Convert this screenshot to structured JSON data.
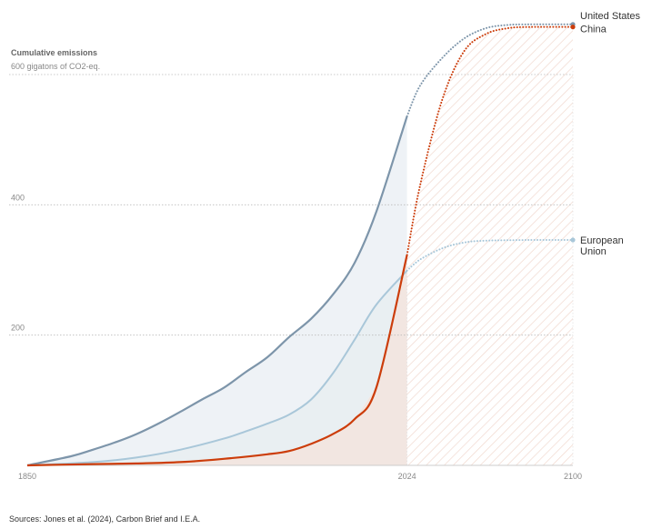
{
  "source": "Sources: Jones et al. (2024), Carbon Brief and I.E.A.",
  "chart_data": {
    "type": "line",
    "title": "Cumulative emissions",
    "subtitle": "600 gigatons of CO2-eq.",
    "x_ticks": [
      "1850",
      "2024",
      "2100"
    ],
    "y_ticks": [
      400,
      200
    ],
    "xlim": [
      1850,
      2100
    ],
    "ylim": [
      0,
      600
    ],
    "projection_start": 2024,
    "grid": "horizontal dotted",
    "colors": {
      "us": "#7d95aa",
      "china": "#cc3d0b",
      "eu": "#a9c7d9",
      "us_fill": "#eef2f6",
      "china_fill": "#f2e6e1",
      "eu_fill": "#e9eff2"
    },
    "series": [
      {
        "key": "us",
        "name": "United States",
        "label_lines": [
          "United States"
        ],
        "historical": [
          [
            1850,
            0
          ],
          [
            1870,
            14
          ],
          [
            1880,
            24
          ],
          [
            1890,
            35
          ],
          [
            1900,
            48
          ],
          [
            1910,
            64
          ],
          [
            1920,
            82
          ],
          [
            1930,
            101
          ],
          [
            1940,
            119
          ],
          [
            1950,
            143
          ],
          [
            1960,
            166
          ],
          [
            1970,
            197
          ],
          [
            1980,
            225
          ],
          [
            1990,
            262
          ],
          [
            2000,
            311
          ],
          [
            2010,
            390
          ],
          [
            2024,
            536
          ]
        ],
        "projected": [
          [
            2024,
            536
          ],
          [
            2030,
            583
          ],
          [
            2040,
            625
          ],
          [
            2050,
            655
          ],
          [
            2060,
            671
          ],
          [
            2070,
            676
          ],
          [
            2080,
            677
          ],
          [
            2100,
            677
          ]
        ]
      },
      {
        "key": "china",
        "name": "China",
        "label_lines": [
          "China"
        ],
        "historical": [
          [
            1850,
            0
          ],
          [
            1880,
            2
          ],
          [
            1900,
            3
          ],
          [
            1920,
            5
          ],
          [
            1940,
            10
          ],
          [
            1960,
            17
          ],
          [
            1970,
            22
          ],
          [
            1980,
            33
          ],
          [
            1990,
            48
          ],
          [
            2000,
            71
          ],
          [
            2010,
            120
          ],
          [
            2024,
            323
          ]
        ],
        "projected": [
          [
            2024,
            323
          ],
          [
            2030,
            430
          ],
          [
            2040,
            560
          ],
          [
            2050,
            635
          ],
          [
            2060,
            662
          ],
          [
            2070,
            671
          ],
          [
            2080,
            673
          ],
          [
            2100,
            673
          ]
        ]
      },
      {
        "key": "eu",
        "name": "European Union",
        "label_lines": [
          "European",
          "Union"
        ],
        "historical": [
          [
            1850,
            0
          ],
          [
            1880,
            5
          ],
          [
            1900,
            12
          ],
          [
            1920,
            24
          ],
          [
            1940,
            41
          ],
          [
            1950,
            52
          ],
          [
            1960,
            64
          ],
          [
            1970,
            78
          ],
          [
            1980,
            101
          ],
          [
            1990,
            141
          ],
          [
            2000,
            193
          ],
          [
            2010,
            247
          ],
          [
            2024,
            299
          ]
        ],
        "projected": [
          [
            2024,
            299
          ],
          [
            2030,
            316
          ],
          [
            2040,
            333
          ],
          [
            2050,
            342
          ],
          [
            2060,
            345
          ],
          [
            2080,
            346
          ],
          [
            2100,
            346
          ]
        ]
      }
    ]
  }
}
